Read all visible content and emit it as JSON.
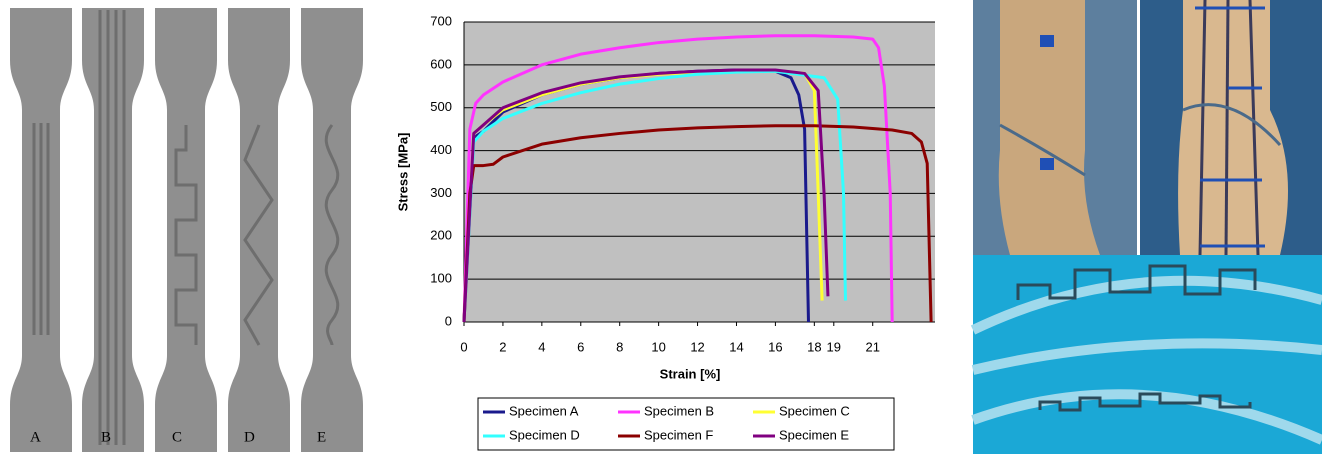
{
  "specimen_labels": [
    "A",
    "B",
    "C",
    "D",
    "E"
  ],
  "chart_data": {
    "type": "line",
    "x_label": "Strain [%]",
    "y_label": "Stress [MPa]",
    "xlim": [
      0,
      24.2
    ],
    "ylim": [
      0,
      700
    ],
    "xticks": [
      0,
      2,
      4,
      6,
      8,
      10,
      12,
      14,
      16,
      18,
      19,
      21
    ],
    "yticks": [
      0,
      100,
      200,
      300,
      400,
      500,
      600,
      700
    ],
    "grid": true,
    "legend": "bottom",
    "series": [
      {
        "name": "Specimen A",
        "color": "#1a1a8c",
        "x": [
          0,
          0.5,
          1,
          2,
          4,
          6,
          8,
          10,
          12,
          14,
          16,
          16.8,
          17.2,
          17.5,
          17.7
        ],
        "values": [
          0,
          430,
          445,
          490,
          530,
          555,
          570,
          580,
          585,
          588,
          585,
          570,
          530,
          450,
          0
        ]
      },
      {
        "name": "Specimen B",
        "color": "#ff33ff",
        "x": [
          0,
          0.3,
          0.6,
          1,
          2,
          4,
          6,
          8,
          10,
          12,
          14,
          16,
          18,
          20,
          21,
          21.3,
          21.6,
          21.9,
          22
        ],
        "values": [
          0,
          450,
          510,
          530,
          560,
          600,
          625,
          640,
          652,
          660,
          665,
          668,
          668,
          665,
          660,
          640,
          550,
          300,
          0
        ]
      },
      {
        "name": "Specimen C",
        "color": "#ffff33",
        "x": [
          0,
          0.5,
          1,
          2,
          4,
          6,
          8,
          10,
          12,
          14,
          16,
          17.5,
          18,
          18.2,
          18.4
        ],
        "values": [
          0,
          440,
          460,
          495,
          530,
          555,
          570,
          578,
          583,
          585,
          585,
          580,
          540,
          300,
          50
        ]
      },
      {
        "name": "Specimen D",
        "color": "#33ffff",
        "x": [
          0,
          0.5,
          1,
          2,
          4,
          6,
          8,
          10,
          12,
          14,
          16,
          18.5,
          19.2,
          19.5,
          19.6
        ],
        "values": [
          0,
          420,
          445,
          475,
          510,
          535,
          555,
          568,
          578,
          583,
          585,
          570,
          520,
          300,
          50
        ]
      },
      {
        "name": "Specimen F",
        "color": "#8b0000",
        "x": [
          0,
          0.3,
          0.5,
          1,
          1.5,
          2,
          4,
          6,
          8,
          10,
          12,
          14,
          16,
          18,
          20,
          22,
          23,
          23.5,
          23.8,
          24
        ],
        "values": [
          0,
          300,
          365,
          365,
          368,
          385,
          415,
          430,
          440,
          448,
          453,
          456,
          458,
          458,
          455,
          448,
          440,
          420,
          370,
          0
        ]
      },
      {
        "name": "Specimen E",
        "color": "#800080",
        "x": [
          0,
          0.5,
          1,
          2,
          4,
          6,
          8,
          10,
          12,
          14,
          16,
          17.5,
          18.2,
          18.5,
          18.7
        ],
        "values": [
          0,
          440,
          460,
          500,
          535,
          558,
          572,
          580,
          585,
          588,
          588,
          580,
          540,
          300,
          60
        ]
      }
    ]
  }
}
